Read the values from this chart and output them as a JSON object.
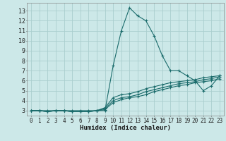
{
  "title": "",
  "xlabel": "Humidex (Indice chaleur)",
  "ylabel": "",
  "background_color": "#cce8e8",
  "grid_color": "#aacece",
  "line_color": "#1a6b6b",
  "xlim": [
    -0.5,
    23.5
  ],
  "ylim": [
    2.5,
    13.8
  ],
  "xticks": [
    0,
    1,
    2,
    3,
    4,
    5,
    6,
    7,
    8,
    9,
    10,
    11,
    12,
    13,
    14,
    15,
    16,
    17,
    18,
    19,
    20,
    21,
    22,
    23
  ],
  "yticks": [
    3,
    4,
    5,
    6,
    7,
    8,
    9,
    10,
    11,
    12,
    13
  ],
  "series": [
    {
      "x": [
        0,
        1,
        2,
        3,
        4,
        5,
        6,
        7,
        8,
        9,
        10,
        11,
        12,
        13,
        14,
        15,
        16,
        17,
        18,
        19,
        20,
        21,
        22,
        23
      ],
      "y": [
        3,
        3,
        3,
        3,
        3,
        3,
        3,
        3,
        3,
        3,
        7.5,
        11,
        13.3,
        12.5,
        12,
        10.5,
        8.5,
        7,
        7,
        6.5,
        6,
        5,
        5.5,
        6.5
      ]
    },
    {
      "x": [
        0,
        1,
        2,
        3,
        4,
        5,
        6,
        7,
        8,
        9,
        10,
        11,
        12,
        13,
        14,
        15,
        16,
        17,
        18,
        19,
        20,
        21,
        22,
        23
      ],
      "y": [
        3,
        3,
        2.9,
        3,
        3,
        2.9,
        2.9,
        2.9,
        3,
        3.3,
        4.3,
        4.6,
        4.7,
        4.9,
        5.2,
        5.4,
        5.6,
        5.8,
        5.9,
        6.0,
        6.1,
        6.3,
        6.4,
        6.5
      ]
    },
    {
      "x": [
        0,
        1,
        2,
        3,
        4,
        5,
        6,
        7,
        8,
        9,
        10,
        11,
        12,
        13,
        14,
        15,
        16,
        17,
        18,
        19,
        20,
        21,
        22,
        23
      ],
      "y": [
        3,
        3,
        2.9,
        3,
        3,
        2.9,
        2.9,
        2.9,
        3,
        3.2,
        4.0,
        4.3,
        4.4,
        4.6,
        4.9,
        5.1,
        5.3,
        5.5,
        5.7,
        5.8,
        5.9,
        6.1,
        6.2,
        6.4
      ]
    },
    {
      "x": [
        0,
        1,
        2,
        3,
        4,
        5,
        6,
        7,
        8,
        9,
        10,
        11,
        12,
        13,
        14,
        15,
        16,
        17,
        18,
        19,
        20,
        21,
        22,
        23
      ],
      "y": [
        3,
        3,
        2.9,
        3,
        3,
        2.9,
        2.9,
        2.9,
        3,
        3.1,
        3.8,
        4.1,
        4.3,
        4.4,
        4.6,
        4.9,
        5.1,
        5.3,
        5.5,
        5.6,
        5.8,
        5.9,
        6.0,
        6.2
      ]
    }
  ]
}
